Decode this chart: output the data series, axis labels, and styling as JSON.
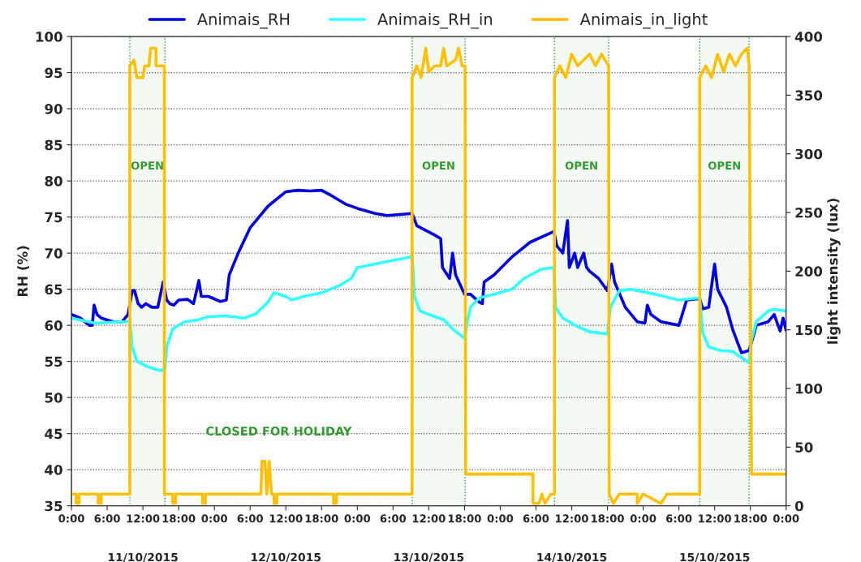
{
  "chart_data": {
    "type": "line",
    "ylabel": "RH (%)",
    "y2label": "light intensity (lux)",
    "xlim": [
      "2015-10-11T00:00",
      "2015-10-16T00:00"
    ],
    "xticks": [
      {
        "value": "2015-10-11T00:00",
        "label": "0:00"
      },
      {
        "value": "2015-10-11T06:00",
        "label": "6:00"
      },
      {
        "value": "2015-10-11T12:00",
        "label": "12:00"
      },
      {
        "value": "2015-10-11T18:00",
        "label": "18:00"
      },
      {
        "value": "2015-10-12T00:00",
        "label": "0:00"
      },
      {
        "value": "2015-10-12T06:00",
        "label": "6:00"
      },
      {
        "value": "2015-10-12T12:00",
        "label": "12:00"
      },
      {
        "value": "2015-10-12T18:00",
        "label": "18:00"
      },
      {
        "value": "2015-10-13T00:00",
        "label": "0:00"
      },
      {
        "value": "2015-10-13T06:00",
        "label": "6:00"
      },
      {
        "value": "2015-10-13T12:00",
        "label": "12:00"
      },
      {
        "value": "2015-10-13T18:00",
        "label": "18:00"
      },
      {
        "value": "2015-10-14T00:00",
        "label": "0:00"
      },
      {
        "value": "2015-10-14T06:00",
        "label": "6:00"
      },
      {
        "value": "2015-10-14T12:00",
        "label": "12:00"
      },
      {
        "value": "2015-10-14T18:00",
        "label": "18:00"
      },
      {
        "value": "2015-10-15T00:00",
        "label": "0:00"
      },
      {
        "value": "2015-10-15T06:00",
        "label": "6:00"
      },
      {
        "value": "2015-10-15T12:00",
        "label": "12:00"
      },
      {
        "value": "2015-10-15T18:00",
        "label": "18:00"
      },
      {
        "value": "2015-10-16T00:00",
        "label": "0:00"
      }
    ],
    "ylim": [
      35,
      100
    ],
    "yticks": [
      35,
      40,
      45,
      50,
      55,
      60,
      65,
      70,
      75,
      80,
      85,
      90,
      95,
      100
    ],
    "y2lim": [
      0,
      400
    ],
    "y2ticks": [
      0,
      50,
      100,
      150,
      200,
      250,
      300,
      350,
      400
    ],
    "grid": "y",
    "legend": "top",
    "line_style": "solid",
    "marker": "none",
    "series": [
      {
        "name": "Animais_RH",
        "color": "#0000e0",
        "x": [
          "2015-10-11T00:00",
          "2015-10-11T01:30",
          "2015-10-11T03:00",
          "2015-10-11T03:30",
          "2015-10-11T03:48",
          "2015-10-11T04:18",
          "2015-10-11T05:00",
          "2015-10-11T07:00",
          "2015-10-11T08:30",
          "2015-10-11T09:30",
          "2015-10-11T10:12",
          "2015-10-11T10:36",
          "2015-10-11T11:12",
          "2015-10-11T11:48",
          "2015-10-11T12:30",
          "2015-10-11T13:30",
          "2015-10-11T14:30",
          "2015-10-11T15:24",
          "2015-10-11T16:00",
          "2015-10-11T16:30",
          "2015-10-11T17:12",
          "2015-10-11T18:00",
          "2015-10-11T19:30",
          "2015-10-11T20:30",
          "2015-10-11T21:24",
          "2015-10-11T21:48",
          "2015-10-11T23:00",
          "2015-10-12T01:00",
          "2015-10-12T02:00",
          "2015-10-12T02:30",
          "2015-10-12T04:00",
          "2015-10-12T06:00",
          "2015-10-12T09:00",
          "2015-10-12T12:00",
          "2015-10-12T14:00",
          "2015-10-12T16:00",
          "2015-10-12T18:00",
          "2015-10-12T20:00",
          "2015-10-12T22:00",
          "2015-10-13T00:00",
          "2015-10-13T03:00",
          "2015-10-13T05:00",
          "2015-10-13T08:00",
          "2015-10-13T09:12",
          "2015-10-13T10:00",
          "2015-10-13T13:00",
          "2015-10-13T14:00",
          "2015-10-13T14:18",
          "2015-10-13T15:30",
          "2015-10-13T16:00",
          "2015-10-13T16:30",
          "2015-10-13T18:00",
          "2015-10-13T19:00",
          "2015-10-13T20:30",
          "2015-10-13T21:00",
          "2015-10-13T21:18",
          "2015-10-13T23:00",
          "2015-10-14T02:00",
          "2015-10-14T05:00",
          "2015-10-14T08:30",
          "2015-10-14T09:00",
          "2015-10-14T09:30",
          "2015-10-14T10:30",
          "2015-10-14T11:18",
          "2015-10-14T11:36",
          "2015-10-14T12:30",
          "2015-10-14T13:00",
          "2015-10-14T14:00",
          "2015-10-14T14:30",
          "2015-10-14T15:00",
          "2015-10-14T16:30",
          "2015-10-14T18:00",
          "2015-10-14T18:42",
          "2015-10-14T19:12",
          "2015-10-14T21:00",
          "2015-10-14T23:00",
          "2015-10-15T00:18",
          "2015-10-15T00:42",
          "2015-10-15T01:18",
          "2015-10-15T03:00",
          "2015-10-15T06:00",
          "2015-10-15T07:18",
          "2015-10-15T09:30",
          "2015-10-15T10:00",
          "2015-10-15T11:00",
          "2015-10-15T12:00",
          "2015-10-15T12:30",
          "2015-10-15T14:00",
          "2015-10-15T15:00",
          "2015-10-15T16:30",
          "2015-10-15T17:48",
          "2015-10-15T18:30",
          "2015-10-15T19:00",
          "2015-10-15T21:00",
          "2015-10-15T22:00",
          "2015-10-15T23:00",
          "2015-10-15T23:30",
          "2015-10-16T00:00"
        ],
        "values": [
          61.5,
          61,
          60,
          60,
          62.8,
          61.5,
          61,
          60.5,
          60.5,
          61.5,
          64.8,
          64.8,
          63,
          62.5,
          63,
          62.5,
          62.5,
          66,
          63.5,
          63,
          62.8,
          63.5,
          63.6,
          63,
          66.2,
          64,
          64,
          63.3,
          63.5,
          67,
          70,
          73.5,
          76.5,
          78.5,
          78.7,
          78.6,
          78.7,
          77.8,
          76.8,
          76.2,
          75.5,
          75.2,
          75.4,
          75.5,
          73.8,
          72.5,
          72,
          68,
          66.5,
          70,
          67,
          64.3,
          64.3,
          63.2,
          63,
          66,
          67,
          69.5,
          71.5,
          72.8,
          73,
          71,
          70,
          74.5,
          68,
          70,
          68,
          70,
          68,
          67.5,
          66.5,
          64.8,
          68.5,
          66,
          62.5,
          60.5,
          60.3,
          62.8,
          61.5,
          60.5,
          60,
          63.5,
          63.7,
          62.3,
          62.5,
          68.5,
          65,
          62.5,
          59.5,
          56.2,
          56.5,
          58.5,
          60,
          60.5,
          61.5,
          59.2,
          61,
          59.3
        ]
      },
      {
        "name": "Animais_RH_in",
        "color": "#33ffff",
        "x": [
          "2015-10-11T00:00",
          "2015-10-11T04:00",
          "2015-10-11T08:00",
          "2015-10-11T09:48",
          "2015-10-11T10:12",
          "2015-10-11T11:00",
          "2015-10-11T13:00",
          "2015-10-11T15:00",
          "2015-10-11T15:42",
          "2015-10-11T16:00",
          "2015-10-11T17:00",
          "2015-10-11T19:00",
          "2015-10-11T21:00",
          "2015-10-11T23:00",
          "2015-10-12T02:00",
          "2015-10-12T05:00",
          "2015-10-12T07:00",
          "2015-10-12T09:00",
          "2015-10-12T10:00",
          "2015-10-12T12:00",
          "2015-10-12T13:00",
          "2015-10-12T15:00",
          "2015-10-12T18:00",
          "2015-10-12T21:00",
          "2015-10-12T23:00",
          "2015-10-13T00:00",
          "2015-10-13T03:00",
          "2015-10-13T06:00",
          "2015-10-13T09:12",
          "2015-10-13T09:36",
          "2015-10-13T10:30",
          "2015-10-13T13:00",
          "2015-10-13T14:30",
          "2015-10-13T16:00",
          "2015-10-13T18:00",
          "2015-10-13T18:30",
          "2015-10-13T19:00",
          "2015-10-13T20:30",
          "2015-10-13T23:00",
          "2015-10-14T02:00",
          "2015-10-14T04:00",
          "2015-10-14T07:00",
          "2015-10-14T09:00",
          "2015-10-14T09:18",
          "2015-10-14T10:30",
          "2015-10-14T13:00",
          "2015-10-14T15:00",
          "2015-10-14T18:00",
          "2015-10-14T18:30",
          "2015-10-14T20:00",
          "2015-10-14T22:00",
          "2015-10-15T02:00",
          "2015-10-15T06:00",
          "2015-10-15T09:30",
          "2015-10-15T10:00",
          "2015-10-15T11:00",
          "2015-10-15T13:00",
          "2015-10-15T15:00",
          "2015-10-15T17:48",
          "2015-10-15T18:12",
          "2015-10-15T19:00",
          "2015-10-15T21:00",
          "2015-10-15T22:00",
          "2015-10-16T00:00"
        ],
        "values": [
          61,
          60.3,
          60.5,
          60.5,
          57,
          55,
          54.2,
          53.7,
          54,
          57,
          59.5,
          60.5,
          60.7,
          61.2,
          61.3,
          61,
          61.6,
          63.2,
          64.5,
          64,
          63.5,
          64,
          64.5,
          65.5,
          66.5,
          68,
          68.5,
          69,
          69.5,
          64,
          62,
          61.2,
          60.8,
          59.5,
          58.2,
          60.5,
          62.5,
          63.8,
          64.3,
          65,
          66.5,
          67.8,
          68,
          62.5,
          61,
          59.8,
          59.1,
          58.8,
          62.5,
          64.8,
          65,
          64.3,
          63.5,
          63.8,
          59,
          57,
          56.5,
          56.4,
          54.8,
          58,
          60.5,
          62,
          62.2,
          62
        ]
      },
      {
        "name": "Animais_in_light",
        "color": "#ffc000",
        "axis": "y2",
        "x": [
          "2015-10-11T00:00",
          "2015-10-11T00:48",
          "2015-10-11T00:48",
          "2015-10-11T01:18",
          "2015-10-11T01:18",
          "2015-10-11T04:30",
          "2015-10-11T04:30",
          "2015-10-11T05:00",
          "2015-10-11T05:00",
          "2015-10-11T09:48",
          "2015-10-11T09:48",
          "2015-10-11T10:30",
          "2015-10-11T11:00",
          "2015-10-11T12:00",
          "2015-10-11T12:18",
          "2015-10-11T13:00",
          "2015-10-11T13:18",
          "2015-10-11T14:12",
          "2015-10-11T14:12",
          "2015-10-11T15:36",
          "2015-10-11T15:36",
          "2015-10-11T17:00",
          "2015-10-11T17:00",
          "2015-10-11T17:30",
          "2015-10-11T17:30",
          "2015-10-11T22:00",
          "2015-10-11T22:00",
          "2015-10-11T22:30",
          "2015-10-11T22:30",
          "2015-10-12T07:48",
          "2015-10-12T08:00",
          "2015-10-12T08:30",
          "2015-10-12T08:48",
          "2015-10-12T09:12",
          "2015-10-12T09:36",
          "2015-10-12T10:00",
          "2015-10-12T10:00",
          "2015-10-12T10:30",
          "2015-10-12T10:30",
          "2015-10-12T20:00",
          "2015-10-12T20:00",
          "2015-10-12T20:30",
          "2015-10-12T20:30",
          "2015-10-13T09:12",
          "2015-10-13T09:12",
          "2015-10-13T10:00",
          "2015-10-13T10:42",
          "2015-10-13T11:30",
          "2015-10-13T12:00",
          "2015-10-13T13:00",
          "2015-10-13T14:00",
          "2015-10-13T14:30",
          "2015-10-13T15:00",
          "2015-10-13T16:30",
          "2015-10-13T17:00",
          "2015-10-13T17:36",
          "2015-10-13T18:06",
          "2015-10-13T18:12",
          "2015-10-14T05:30",
          "2015-10-14T05:30",
          "2015-10-14T06:30",
          "2015-10-14T07:00",
          "2015-10-14T07:30",
          "2015-10-14T08:30",
          "2015-10-14T09:06",
          "2015-10-14T09:06",
          "2015-10-14T10:00",
          "2015-10-14T11:00",
          "2015-10-14T12:00",
          "2015-10-14T13:00",
          "2015-10-14T14:00",
          "2015-10-14T15:00",
          "2015-10-14T16:00",
          "2015-10-14T17:00",
          "2015-10-14T18:12",
          "2015-10-14T18:18",
          "2015-10-14T19:00",
          "2015-10-14T20:00",
          "2015-10-14T23:00",
          "2015-10-14T23:00",
          "2015-10-15T00:00",
          "2015-10-15T03:00",
          "2015-10-15T04:00",
          "2015-10-15T09:30",
          "2015-10-15T09:30",
          "2015-10-15T10:30",
          "2015-10-15T11:30",
          "2015-10-15T12:30",
          "2015-10-15T13:30",
          "2015-10-15T14:30",
          "2015-10-15T15:30",
          "2015-10-15T16:30",
          "2015-10-15T17:30",
          "2015-10-15T17:48",
          "2015-10-15T18:12",
          "2015-10-16T00:00"
        ],
        "values": [
          10,
          10,
          2,
          2,
          10,
          10,
          2,
          2,
          10,
          10,
          375,
          380,
          365,
          365,
          375,
          375,
          390,
          390,
          375,
          375,
          10,
          10,
          2,
          2,
          10,
          10,
          2,
          2,
          10,
          10,
          38,
          38,
          10,
          38,
          10,
          10,
          2,
          2,
          10,
          10,
          2,
          2,
          10,
          10,
          365,
          375,
          365,
          390,
          370,
          375,
          375,
          390,
          375,
          380,
          390,
          375,
          375,
          27,
          27,
          2,
          2,
          10,
          2,
          10,
          10,
          365,
          375,
          365,
          385,
          375,
          380,
          385,
          375,
          385,
          375,
          10,
          2,
          10,
          10,
          2,
          10,
          2,
          10,
          10,
          365,
          375,
          365,
          385,
          370,
          385,
          375,
          385,
          390,
          375,
          27,
          27
        ]
      }
    ],
    "bands": [
      {
        "axis": "x",
        "from": "2015-10-11T09:48",
        "to": "2015-10-11T15:42",
        "label": "OPEN",
        "color": "#339933"
      },
      {
        "axis": "x",
        "from": "2015-10-13T09:12",
        "to": "2015-10-13T18:06",
        "label": "OPEN",
        "color": "#339933"
      },
      {
        "axis": "x",
        "from": "2015-10-14T09:06",
        "to": "2015-10-14T18:12",
        "label": "OPEN",
        "color": "#339933"
      },
      {
        "axis": "x",
        "from": "2015-10-15T09:30",
        "to": "2015-10-15T17:48",
        "label": "OPEN",
        "color": "#339933"
      }
    ],
    "annotations": [
      "CLOSED FOR HOLIDAY",
      "11/10/2015",
      "12/10/2015",
      "13/10/2015",
      "14/10/2015",
      "15/10/2015"
    ]
  }
}
